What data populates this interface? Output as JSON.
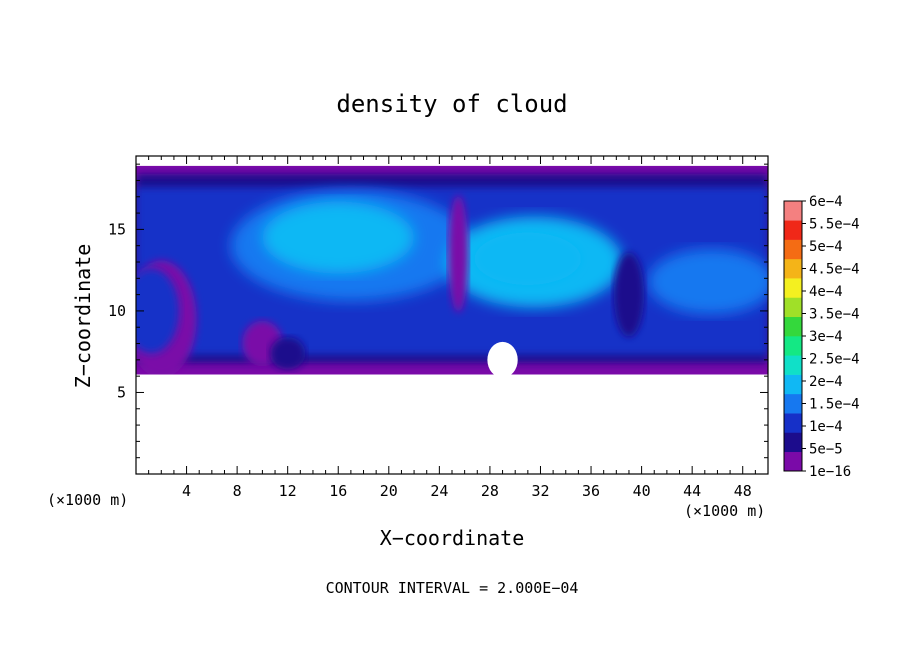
{
  "chart_data": {
    "type": "heatmap",
    "title": "density of cloud",
    "xlabel": "X−coordinate",
    "ylabel": "Z−coordinate",
    "x_unit": "(×1000 m)",
    "y_unit": "(×1000 m)",
    "xlim": [
      0,
      50
    ],
    "ylim": [
      0,
      19.5
    ],
    "x_ticks": [
      "4",
      "8",
      "12",
      "16",
      "20",
      "24",
      "28",
      "32",
      "36",
      "40",
      "44",
      "48"
    ],
    "y_ticks": [
      "5",
      "10",
      "15"
    ],
    "footnote": "CONTOUR INTERVAL = 2.000E−04",
    "colorbar": {
      "labels": [
        "1e−16",
        "5e−5",
        "1e−4",
        "1.5e−4",
        "2e−4",
        "2.5e−4",
        "3e−4",
        "3.5e−4",
        "4e−4",
        "4.5e−4",
        "5e−4",
        "5.5e−4",
        "6e−4"
      ],
      "colors": [
        "#7a0aa8",
        "#1c0c8c",
        "#1630c8",
        "#1678f0",
        "#10b8f4",
        "#10e0c8",
        "#14e884",
        "#34d83c",
        "#a0e028",
        "#f4f020",
        "#f4b418",
        "#f46c14",
        "#f02818",
        "#f48080"
      ]
    },
    "cloud_layer": {
      "bottom_z": 6.1,
      "top_z": 18.9,
      "max_density": 0.00016,
      "features": [
        "dense core near x 12-22 km, z 11-16 km",
        "dense core near x 26-36 km, z 11-15 km",
        "edge cell near x 0-3 km, z 8-12 km",
        "gap near x 28-30 km below z 8 km"
      ]
    }
  }
}
